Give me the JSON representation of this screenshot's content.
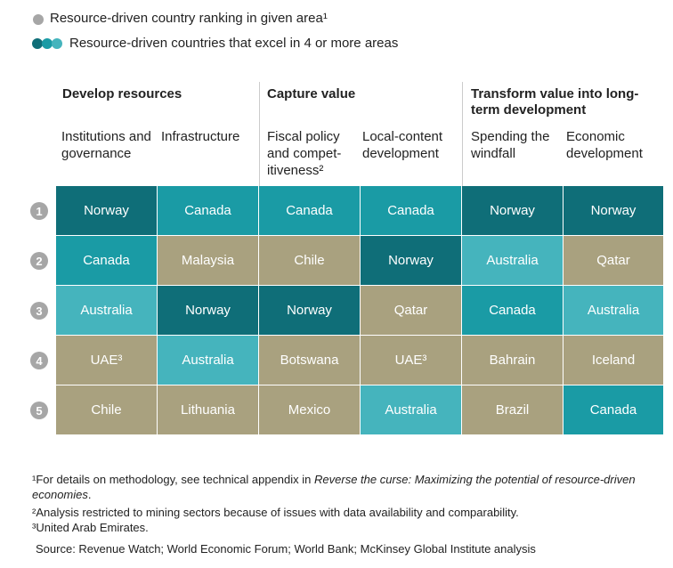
{
  "legend": {
    "single": "Resource-driven country ranking in given area¹",
    "multi": "Resource-driven countries that excel in 4 or more areas",
    "single_color": "#a6a6a6",
    "multi_colors": [
      "#0f6e78",
      "#1a9ba5",
      "#45b4bd"
    ]
  },
  "groups": [
    "Develop resources",
    "Capture value",
    "Transform value into long-term development"
  ],
  "columns": [
    "Institutions and governance",
    "Infrastructure",
    "Fiscal policy and compet-itiveness²",
    "Local-content development",
    "Spending the windfall",
    "Economic development"
  ],
  "ranks": [
    "1",
    "2",
    "3",
    "4",
    "5"
  ],
  "rows": [
    [
      {
        "text": "Norway",
        "color": "#0f6e78"
      },
      {
        "text": "Canada",
        "color": "#1a9ba5"
      },
      {
        "text": "Canada",
        "color": "#1a9ba5"
      },
      {
        "text": "Canada",
        "color": "#1a9ba5"
      },
      {
        "text": "Norway",
        "color": "#0f6e78"
      },
      {
        "text": "Norway",
        "color": "#0f6e78"
      }
    ],
    [
      {
        "text": "Canada",
        "color": "#1a9ba5"
      },
      {
        "text": "Malaysia",
        "color": "#a9a17f"
      },
      {
        "text": "Chile",
        "color": "#a9a17f"
      },
      {
        "text": "Norway",
        "color": "#0f6e78"
      },
      {
        "text": "Australia",
        "color": "#45b4bd"
      },
      {
        "text": "Qatar",
        "color": "#a9a17f"
      }
    ],
    [
      {
        "text": "Australia",
        "color": "#45b4bd"
      },
      {
        "text": "Norway",
        "color": "#0f6e78"
      },
      {
        "text": "Norway",
        "color": "#0f6e78"
      },
      {
        "text": "Qatar",
        "color": "#a9a17f"
      },
      {
        "text": "Canada",
        "color": "#1a9ba5"
      },
      {
        "text": "Australia",
        "color": "#45b4bd"
      }
    ],
    [
      {
        "text": "UAE³",
        "color": "#a9a17f"
      },
      {
        "text": "Australia",
        "color": "#45b4bd"
      },
      {
        "text": "Botswana",
        "color": "#a9a17f"
      },
      {
        "text": "UAE³",
        "color": "#a9a17f"
      },
      {
        "text": "Bahrain",
        "color": "#a9a17f"
      },
      {
        "text": "Iceland",
        "color": "#a9a17f"
      }
    ],
    [
      {
        "text": "Chile",
        "color": "#a9a17f"
      },
      {
        "text": "Lithuania",
        "color": "#a9a17f"
      },
      {
        "text": "Mexico",
        "color": "#a9a17f"
      },
      {
        "text": "Australia",
        "color": "#45b4bd"
      },
      {
        "text": "Brazil",
        "color": "#a9a17f"
      },
      {
        "text": "Canada",
        "color": "#1a9ba5"
      }
    ]
  ],
  "footnotes": {
    "note1": {
      "text": "¹For details on methodology, see technical appendix in ",
      "italic": "Reverse the curse: Maximizing the potential of resource-driven economies",
      "end": "."
    },
    "note2": "²Analysis restricted to mining sectors because of issues with data availability and comparability.",
    "note3": "³United Arab Emirates.",
    "source": "Source: Revenue Watch; World Economic Forum; World Bank; McKinsey Global Institute analysis"
  }
}
